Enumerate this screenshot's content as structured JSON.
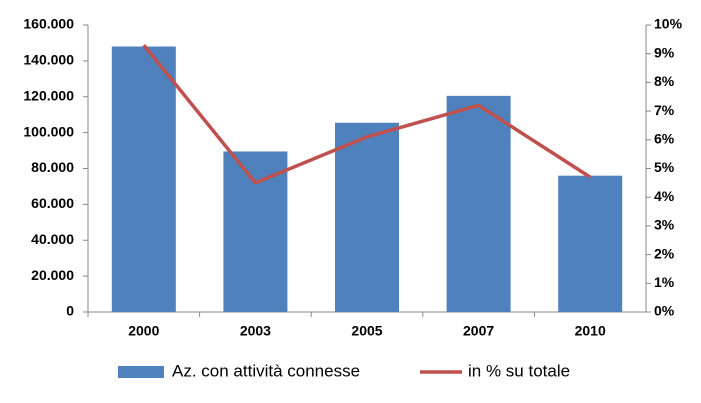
{
  "chart_data": {
    "type": "bar",
    "categories": [
      "2000",
      "2003",
      "2005",
      "2007",
      "2010"
    ],
    "series": [
      {
        "name": "Az. con attività connesse",
        "type": "bar",
        "color": "#4f81bd",
        "values": [
          148000,
          89500,
          105500,
          120500,
          76000
        ]
      },
      {
        "name": "in % su totale",
        "type": "line",
        "axis": "y2",
        "color": "#c0504d",
        "values": [
          9.3,
          4.5,
          6.1,
          7.2,
          4.7
        ]
      }
    ],
    "ylim": [
      0,
      160000
    ],
    "yticks": [
      0,
      {
        "value": 20000,
        "label": "20.000"
      },
      {
        "value": 40000,
        "label": "40.000"
      },
      {
        "value": 60000,
        "label": "60.000"
      },
      {
        "value": 80000,
        "label": "80.000"
      },
      {
        "value": 100000,
        "label": "100.000"
      },
      {
        "value": 120000,
        "label": "120.000"
      },
      {
        "value": 140000,
        "label": "140.000"
      },
      {
        "value": 160000,
        "label": "160.000"
      }
    ],
    "y2lim": [
      0,
      10
    ],
    "y2ticks": [
      {
        "value": 0,
        "label": "0%"
      },
      {
        "value": 1,
        "label": "1%"
      },
      {
        "value": 2,
        "label": "2%"
      },
      {
        "value": 3,
        "label": "3%"
      },
      {
        "value": 4,
        "label": "4%"
      },
      {
        "value": 5,
        "label": "5%"
      },
      {
        "value": 6,
        "label": "6%"
      },
      {
        "value": 7,
        "label": "7%"
      },
      {
        "value": 8,
        "label": "8%"
      },
      {
        "value": 9,
        "label": "9%"
      },
      {
        "value": 10,
        "label": "10%"
      }
    ],
    "grid": false,
    "legend": "bottom"
  }
}
